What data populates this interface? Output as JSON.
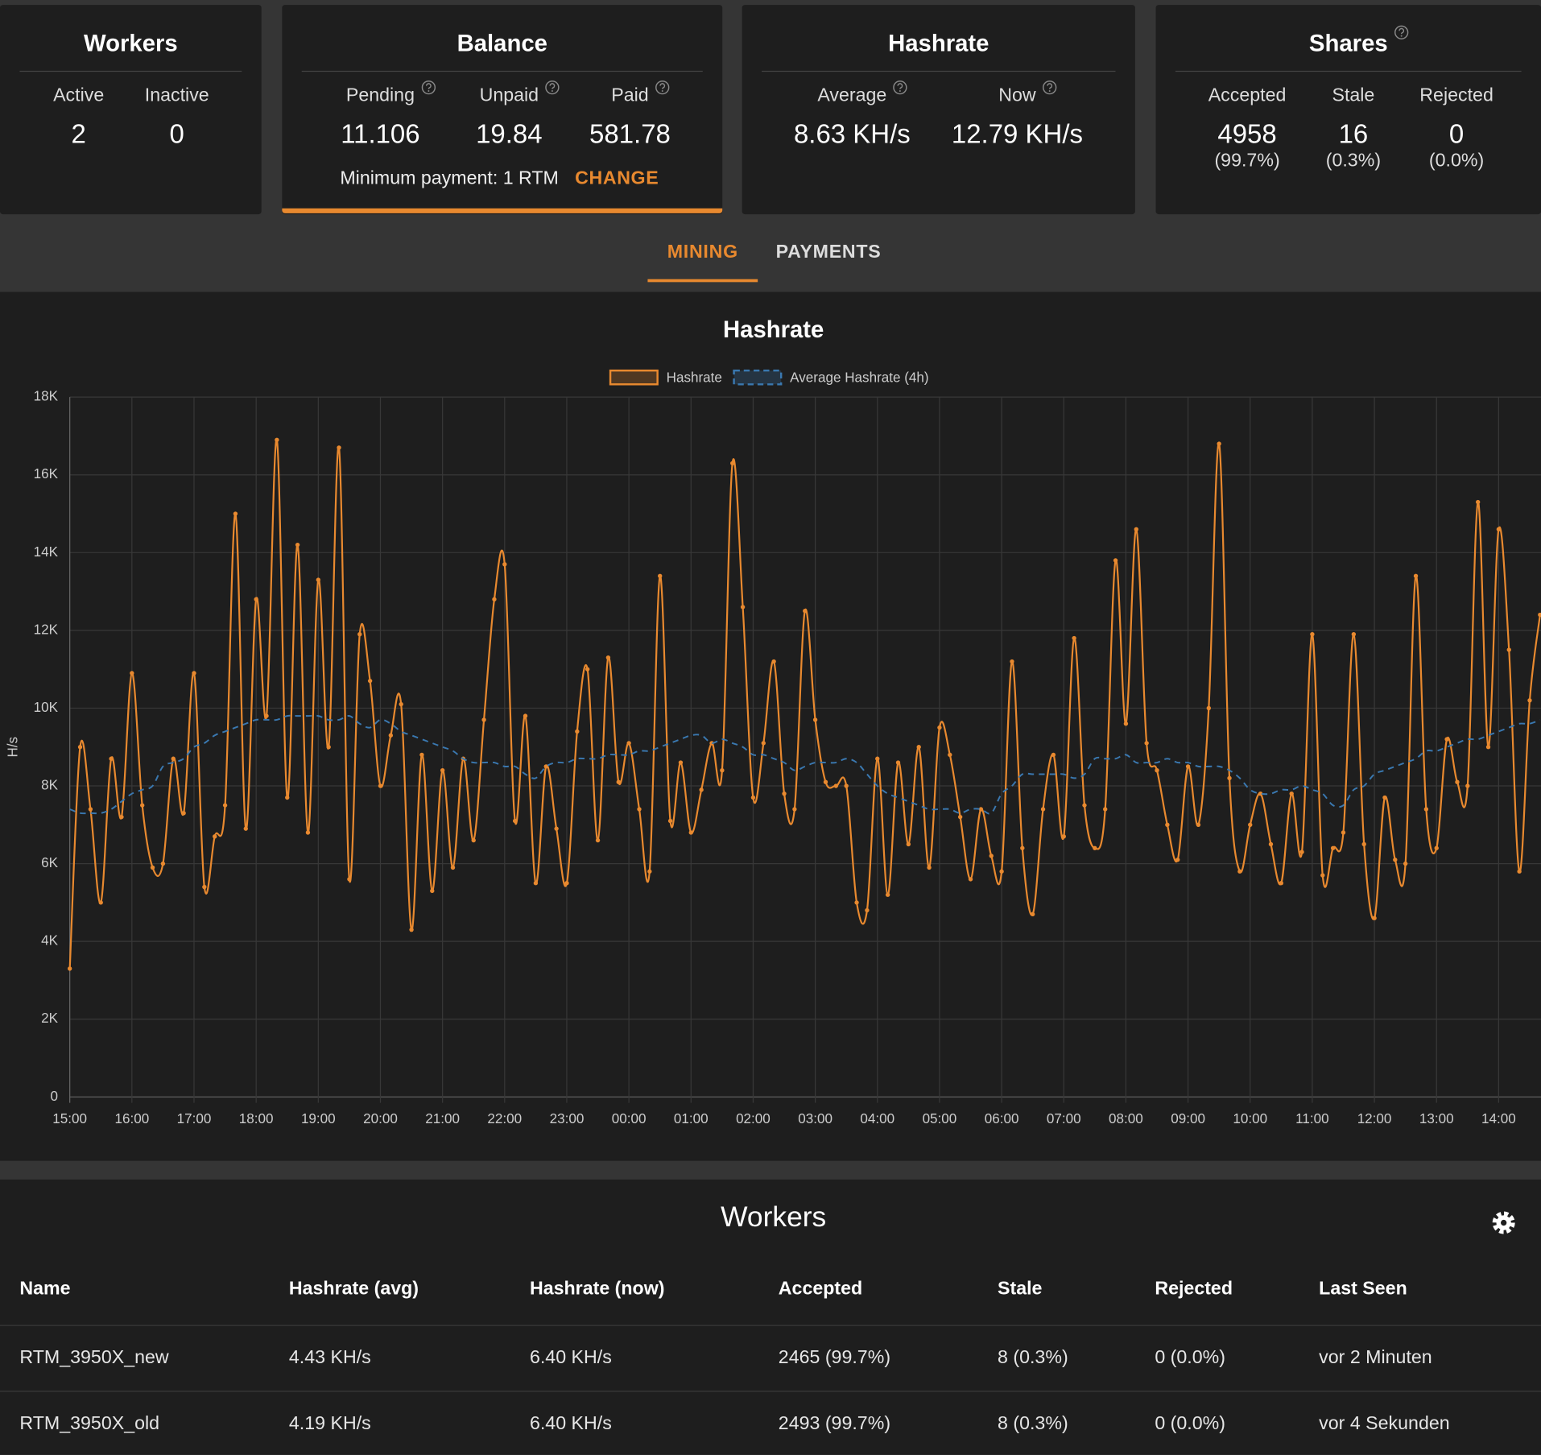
{
  "cards": [
    {
      "title": "Workers",
      "stats": [
        {
          "label": "Active",
          "value": "2"
        },
        {
          "label": "Inactive",
          "value": "0"
        }
      ]
    },
    {
      "title": "Balance",
      "stats": [
        {
          "label": "Pending",
          "value": "11.106",
          "help": true
        },
        {
          "label": "Unpaid",
          "value": "19.84",
          "help": true
        },
        {
          "label": "Paid",
          "value": "581.78",
          "help": true
        }
      ],
      "footer": "Minimum payment: 1 RTM",
      "action": "CHANGE"
    },
    {
      "title": "Hashrate",
      "stats": [
        {
          "label": "Average",
          "value": "8.63 KH/s",
          "help": true
        },
        {
          "label": "Now",
          "value": "12.79 KH/s",
          "help": true
        }
      ]
    },
    {
      "title": "Shares",
      "help": true,
      "stats": [
        {
          "label": "Accepted",
          "value": "4958",
          "sub": "(99.7%)"
        },
        {
          "label": "Stale",
          "value": "16",
          "sub": "(0.3%)"
        },
        {
          "label": "Rejected",
          "value": "0",
          "sub": "(0.0%)"
        }
      ]
    }
  ],
  "tabs": [
    "MINING",
    "PAYMENTS"
  ],
  "active_tab": 0,
  "chart_data": {
    "type": "line",
    "title": "Hashrate",
    "y_label": "H/s",
    "x": [
      "15:00",
      "15:10",
      "15:20",
      "15:30",
      "15:40",
      "15:50",
      "16:00",
      "16:10",
      "16:20",
      "16:30",
      "16:40",
      "16:50",
      "17:00",
      "17:10",
      "17:20",
      "17:30",
      "17:40",
      "17:50",
      "18:00",
      "18:10",
      "18:20",
      "18:30",
      "18:40",
      "18:50",
      "19:00",
      "19:10",
      "19:20",
      "19:30",
      "19:40",
      "19:50",
      "20:00",
      "20:10",
      "20:20",
      "20:30",
      "20:40",
      "20:50",
      "21:00",
      "21:10",
      "21:20",
      "21:30",
      "21:40",
      "21:50",
      "22:00",
      "22:10",
      "22:20",
      "22:30",
      "22:40",
      "22:50",
      "23:00",
      "23:10",
      "23:20",
      "23:30",
      "23:40",
      "23:50",
      "00:00",
      "00:10",
      "00:20",
      "00:30",
      "00:40",
      "00:50",
      "01:00",
      "01:10",
      "01:20",
      "01:30",
      "01:40",
      "01:50",
      "02:00",
      "02:10",
      "02:20",
      "02:30",
      "02:40",
      "02:50",
      "03:00",
      "03:10",
      "03:20",
      "03:30",
      "03:40",
      "03:50",
      "04:00",
      "04:10",
      "04:20",
      "04:30",
      "04:40",
      "04:50",
      "05:00",
      "05:10",
      "05:20",
      "05:30",
      "05:40",
      "05:50",
      "06:00",
      "06:10",
      "06:20",
      "06:30",
      "06:40",
      "06:50",
      "07:00",
      "07:10",
      "07:20",
      "07:30",
      "07:40",
      "07:50",
      "08:00",
      "08:10",
      "08:20",
      "08:30",
      "08:40",
      "08:50",
      "09:00",
      "09:10",
      "09:20",
      "09:30",
      "09:40",
      "09:50",
      "10:00",
      "10:10",
      "10:20",
      "10:30",
      "10:40",
      "10:50",
      "11:00",
      "11:10",
      "11:20",
      "11:30",
      "11:40",
      "11:50",
      "12:00",
      "12:10",
      "12:20",
      "12:30",
      "12:40",
      "12:50",
      "13:00",
      "13:10",
      "13:20",
      "13:30",
      "13:40",
      "13:50",
      "14:00",
      "14:10",
      "14:20",
      "14:30",
      "14:40"
    ],
    "xticks": [
      "15:00",
      "16:00",
      "17:00",
      "18:00",
      "19:00",
      "20:00",
      "21:00",
      "22:00",
      "23:00",
      "00:00",
      "01:00",
      "02:00",
      "03:00",
      "04:00",
      "05:00",
      "06:00",
      "07:00",
      "08:00",
      "09:00",
      "10:00",
      "11:00",
      "12:00",
      "13:00",
      "14:00"
    ],
    "ylim": [
      0,
      18000
    ],
    "yticks": [
      0,
      {
        "value": 2000,
        "label": "2K"
      },
      {
        "value": 4000,
        "label": "4K"
      },
      {
        "value": 6000,
        "label": "6K"
      },
      {
        "value": 8000,
        "label": "8K"
      },
      {
        "value": 10000,
        "label": "10K"
      },
      {
        "value": 12000,
        "label": "12K"
      },
      {
        "value": 14000,
        "label": "14K"
      },
      {
        "value": 16000,
        "label": "16K"
      },
      {
        "value": 18000,
        "label": "18K"
      }
    ],
    "grid": true,
    "series": [
      {
        "name": "Hashrate",
        "color": "#e8892f",
        "dash": false,
        "points": true,
        "values": [
          3300,
          9000,
          7400,
          5000,
          8700,
          7200,
          10900,
          7500,
          5900,
          6000,
          8700,
          7300,
          10900,
          5400,
          6700,
          7500,
          15000,
          6900,
          12800,
          9800,
          16900,
          7700,
          14200,
          6800,
          13300,
          9000,
          16700,
          5600,
          11900,
          10700,
          8000,
          9300,
          10100,
          4300,
          8800,
          5300,
          8400,
          5900,
          8700,
          6600,
          9700,
          12800,
          13700,
          7100,
          9800,
          5500,
          8500,
          6900,
          5500,
          9400,
          11000,
          6600,
          11300,
          8100,
          9100,
          7400,
          5800,
          13400,
          7100,
          8600,
          6800,
          7900,
          9100,
          8400,
          16300,
          12600,
          7700,
          9100,
          11200,
          7800,
          7400,
          12500,
          9700,
          8100,
          8000,
          8000,
          5000,
          4800,
          8700,
          5200,
          8600,
          6500,
          9000,
          5900,
          9500,
          8800,
          7200,
          5600,
          7400,
          6200,
          5800,
          11200,
          6400,
          4700,
          7400,
          8800,
          6700,
          11800,
          7500,
          6400,
          7400,
          13800,
          9600,
          14600,
          9100,
          8400,
          7000,
          6100,
          8500,
          7000,
          10000,
          16800,
          8200,
          5800,
          7000,
          7800,
          6500,
          5500,
          7800,
          6300,
          11900,
          5700,
          6400,
          6800,
          11900,
          6500,
          4600,
          7700,
          6100,
          6000,
          13400,
          7400,
          6400,
          9200,
          8100,
          8000,
          15300,
          9000,
          14600,
          11500,
          5800,
          10200,
          12400
        ]
      },
      {
        "name": "Average Hashrate (4h)",
        "color": "#3a78b0",
        "dash": true,
        "points": false,
        "values": [
          7400,
          7300,
          7300,
          7300,
          7400,
          7600,
          7800,
          7900,
          8000,
          8500,
          8600,
          8700,
          9000,
          9100,
          9300,
          9400,
          9500,
          9600,
          9700,
          9700,
          9700,
          9800,
          9800,
          9800,
          9800,
          9700,
          9700,
          9800,
          9600,
          9500,
          9700,
          9600,
          9400,
          9300,
          9200,
          9100,
          9000,
          8900,
          8700,
          8600,
          8600,
          8600,
          8500,
          8500,
          8300,
          8200,
          8500,
          8600,
          8600,
          8700,
          8700,
          8700,
          8800,
          8800,
          8800,
          8900,
          8900,
          9000,
          9100,
          9200,
          9300,
          9300,
          9100,
          9200,
          9100,
          9000,
          8800,
          8800,
          8700,
          8600,
          8400,
          8500,
          8600,
          8600,
          8600,
          8700,
          8600,
          8300,
          8000,
          7800,
          7700,
          7600,
          7500,
          7400,
          7400,
          7400,
          7300,
          7400,
          7400,
          7300,
          7800,
          8000,
          8300,
          8300,
          8300,
          8300,
          8300,
          8200,
          8300,
          8700,
          8700,
          8700,
          8800,
          8600,
          8600,
          8600,
          8700,
          8600,
          8600,
          8500,
          8500,
          8500,
          8400,
          8200,
          7900,
          7800,
          7800,
          7900,
          7900,
          8000,
          7900,
          7800,
          7500,
          7500,
          7900,
          8000,
          8300,
          8400,
          8500,
          8600,
          8700,
          8900,
          8900,
          9000,
          9100,
          9200,
          9200,
          9300,
          9400,
          9500,
          9600,
          9600,
          9700
        ]
      }
    ]
  },
  "workers_table": {
    "title": "Workers",
    "columns": [
      "Name",
      "Hashrate (avg)",
      "Hashrate (now)",
      "Accepted",
      "Stale",
      "Rejected",
      "Last Seen"
    ],
    "rows": [
      [
        "RTM_3950X_new",
        "4.43 KH/s",
        "6.40 KH/s",
        "2465 (99.7%)",
        "8 (0.3%)",
        "0 (0.0%)",
        "vor 2 Minuten"
      ],
      [
        "RTM_3950X_old",
        "4.19 KH/s",
        "6.40 KH/s",
        "2493 (99.7%)",
        "8 (0.3%)",
        "0 (0.0%)",
        "vor 4 Sekunden"
      ]
    ]
  }
}
